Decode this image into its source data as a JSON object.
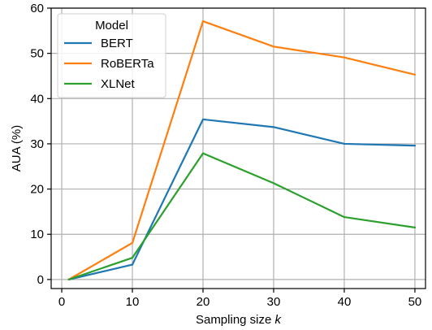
{
  "chart_data": {
    "type": "line",
    "xlabel": "Sampling size k",
    "xlabel_parts": {
      "text": "Sampling size ",
      "italic": "k"
    },
    "ylabel": "AUA (%)",
    "x": [
      1,
      10,
      20,
      30,
      40,
      50
    ],
    "xlim": [
      -1.5,
      51.5
    ],
    "ylim": [
      -2,
      60
    ],
    "xticks": [
      0,
      10,
      20,
      30,
      40,
      50
    ],
    "yticks": [
      0,
      10,
      20,
      30,
      40,
      50,
      60
    ],
    "grid": true,
    "legend": {
      "title": "Model",
      "placement": "top-left"
    },
    "series": [
      {
        "name": "BERT",
        "color": "#1f77b4",
        "values": [
          0,
          3.3,
          35.4,
          33.7,
          30.0,
          29.6
        ]
      },
      {
        "name": "RoBERTa",
        "color": "#ff7f0e",
        "values": [
          0,
          8.1,
          57.1,
          51.5,
          49.1,
          45.3
        ]
      },
      {
        "name": "XLNet",
        "color": "#2ca02c",
        "values": [
          0,
          4.8,
          27.9,
          21.3,
          13.8,
          11.5
        ]
      }
    ]
  }
}
